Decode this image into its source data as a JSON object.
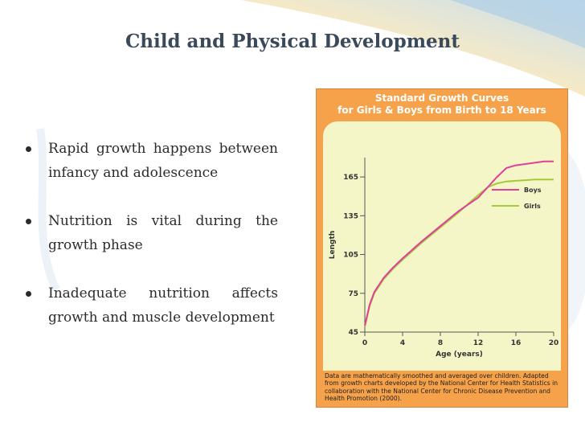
{
  "slide": {
    "title": "Child and Physical Development",
    "bullets": [
      {
        "text": "Rapid growth happens between infancy and adolescence"
      },
      {
        "text": "Nutrition is vital during the growth phase"
      },
      {
        "text": "Inadequate nutrition affects growth and muscle development"
      }
    ]
  },
  "figure": {
    "title_line1": "Standard Growth Curves",
    "title_line2": "for Girls & Boys from Birth to 18 Years",
    "caption": "Data are mathematically smoothed and averaged over children. Adapted from growth charts developed by the National Center for Health Statistics in collaboration with the National Center for Chronic Disease Prevention and Health Promotion (2000)."
  },
  "colors": {
    "boys": "#e0409a",
    "girls": "#a6c93a",
    "frame": "#f6a24a"
  },
  "chart_data": {
    "type": "line",
    "title": "Standard Growth Curves for Girls & Boys from Birth to 18 Years",
    "xlabel": "Age (years)",
    "ylabel": "Length",
    "xlim": [
      0,
      20
    ],
    "ylim": [
      45,
      180
    ],
    "xticks": [
      0,
      4,
      8,
      12,
      16,
      20
    ],
    "yticks": [
      45,
      75,
      105,
      135,
      165
    ],
    "legend_position": "right",
    "series": [
      {
        "name": "Boys",
        "color": "#e0409a",
        "x": [
          0,
          0.5,
          1,
          2,
          3,
          4,
          6,
          8,
          10,
          12,
          13,
          14,
          15,
          16,
          17,
          18,
          19,
          20
        ],
        "y": [
          50,
          66,
          76,
          87,
          95,
          102,
          115,
          127,
          139,
          149,
          157,
          165,
          172,
          174,
          175,
          176,
          177,
          177
        ]
      },
      {
        "name": "Girls",
        "color": "#a6c93a",
        "x": [
          0,
          0.5,
          1,
          2,
          3,
          4,
          6,
          8,
          10,
          12,
          13,
          14,
          15,
          16,
          17,
          18,
          19,
          20
        ],
        "y": [
          49,
          65,
          75,
          86,
          94,
          101,
          114,
          126,
          138,
          151,
          157,
          160,
          161.5,
          162,
          162.5,
          163,
          163,
          163
        ]
      }
    ]
  }
}
